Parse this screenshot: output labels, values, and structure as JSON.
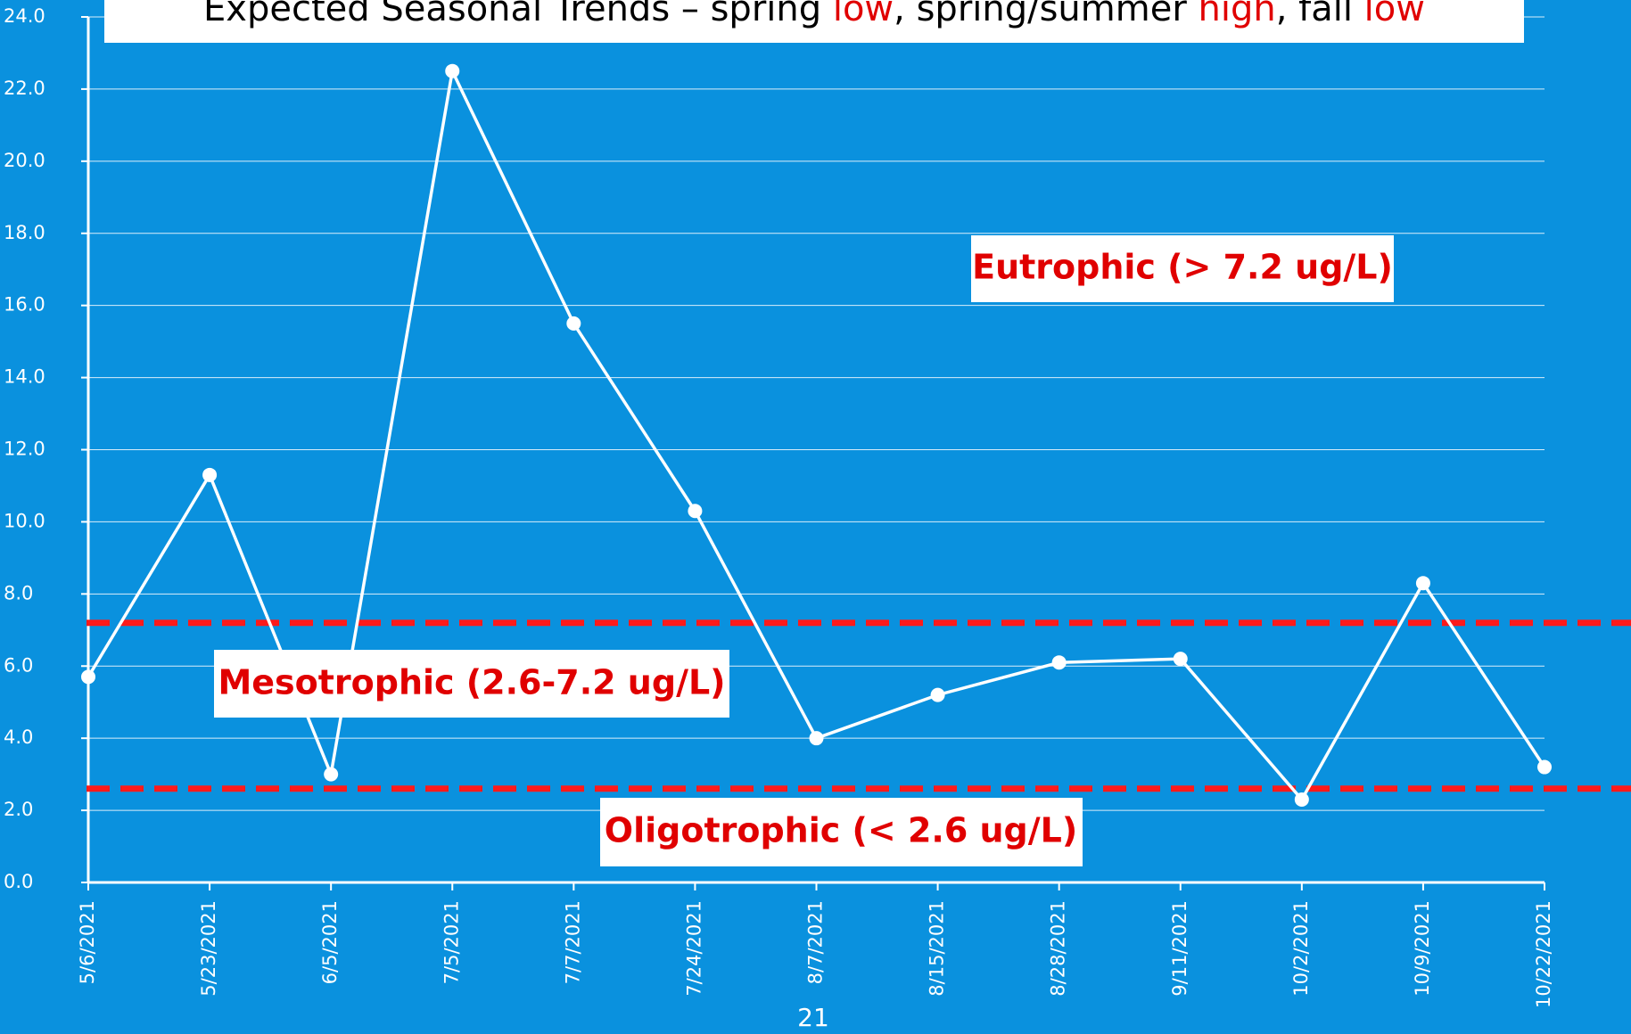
{
  "chart_data": {
    "type": "line",
    "title_parts": [
      "Expected Seasonal Trends – spring ",
      "low",
      ", spring/summer ",
      "high",
      ", fall ",
      "low"
    ],
    "categories": [
      "5/6/2021",
      "5/23/2021",
      "6/5/2021",
      "7/5/2021",
      "7/7/2021",
      "7/24/2021",
      "8/7/2021",
      "8/15/2021",
      "8/28/2021",
      "9/11/2021",
      "10/2/2021",
      "10/9/2021",
      "10/22/2021"
    ],
    "values": [
      5.7,
      11.3,
      3.0,
      22.5,
      15.5,
      10.3,
      4.0,
      5.2,
      6.1,
      6.2,
      2.3,
      8.3,
      3.2
    ],
    "color": "#ffffff",
    "ylim": [
      0,
      24
    ],
    "yticks": [
      {
        "value": 0,
        "label": "0.0"
      },
      {
        "value": 2,
        "label": "2.0"
      },
      {
        "value": 4,
        "label": "4.0"
      },
      {
        "value": 6,
        "label": "6.0"
      },
      {
        "value": 8,
        "label": "8.0"
      },
      {
        "value": 10,
        "label": "10.0"
      },
      {
        "value": 12,
        "label": "12.0"
      },
      {
        "value": 14,
        "label": "14.0"
      },
      {
        "value": 16,
        "label": "16.0"
      },
      {
        "value": 18,
        "label": "18.0"
      },
      {
        "value": 20,
        "label": "20.0"
      },
      {
        "value": 22,
        "label": "22.0"
      },
      {
        "value": 24,
        "label": "24.0"
      }
    ],
    "grid": true,
    "thresholds": [
      7.2,
      2.6
    ],
    "threshold_color": "#ff1a1a",
    "annotations": [
      "Eutrophic (> 7.2 ug/L)",
      "Mesotrophic (2.6-7.2 ug/L)",
      "Oligotrophic (< 2.6 ug/L)"
    ],
    "page_number": "21"
  }
}
